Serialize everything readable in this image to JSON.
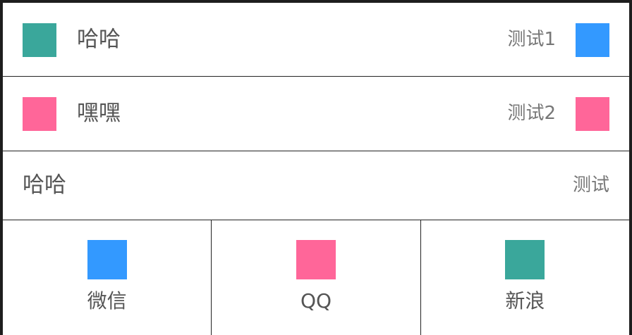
{
  "colors": {
    "teal": "#3aa79b",
    "blue": "#3399ff",
    "pink": "#ff6699",
    "divider": "#222222",
    "text_primary": "#555555",
    "text_secondary": "#777777"
  },
  "list": {
    "items": [
      {
        "title": "哈哈",
        "right_text": "测试1",
        "left_icon": "teal-square-icon",
        "right_icon": "blue-square-icon"
      },
      {
        "title": "嘿嘿",
        "right_text": "测试2",
        "left_icon": "pink-square-icon",
        "right_icon": "pink-square-icon"
      },
      {
        "title": "哈哈",
        "right_text": "测试"
      }
    ]
  },
  "grid": {
    "items": [
      {
        "label": "微信",
        "icon": "blue-square-icon"
      },
      {
        "label": "QQ",
        "icon": "pink-square-icon"
      },
      {
        "label": "新浪",
        "icon": "teal-square-icon"
      }
    ]
  }
}
